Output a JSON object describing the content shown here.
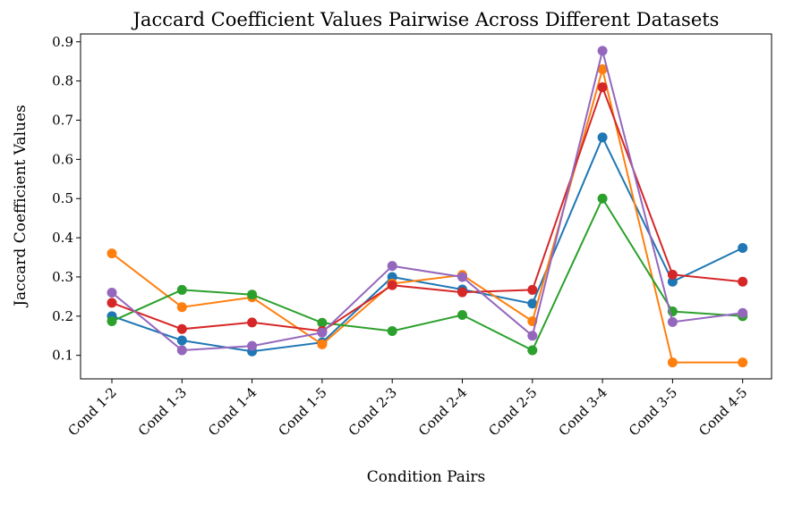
{
  "chart_data": {
    "type": "line",
    "title": "Jaccard Coefficient Values Pairwise Across Different Datasets",
    "xlabel": "Condition Pairs",
    "ylabel": "Jaccard Coefficient Values",
    "categories": [
      "Cond 1-2",
      "Cond 1-3",
      "Cond 1-4",
      "Cond 1-5",
      "Cond 2-3",
      "Cond 2-4",
      "Cond 2-5",
      "Cond 3-4",
      "Cond 3-5",
      "Cond 4-5"
    ],
    "ylim": [
      0.04,
      0.92
    ],
    "yticks": [
      0.1,
      0.2,
      0.3,
      0.4,
      0.5,
      0.6,
      0.7,
      0.8,
      0.9
    ],
    "ytick_labels": [
      "0.1",
      "0.2",
      "0.3",
      "0.4",
      "0.5",
      "0.6",
      "0.7",
      "0.8",
      "0.9"
    ],
    "grid": false,
    "legend": "none",
    "series": [
      {
        "color": "#1f77b4",
        "values": [
          0.2,
          0.138,
          0.11,
          0.133,
          0.3,
          0.268,
          0.232,
          0.656,
          0.288,
          0.374
        ]
      },
      {
        "color": "#ff7f0e",
        "values": [
          0.36,
          0.223,
          0.248,
          0.128,
          0.283,
          0.305,
          0.187,
          0.83,
          0.082,
          0.082
        ]
      },
      {
        "color": "#2ca02c",
        "values": [
          0.187,
          0.267,
          0.255,
          0.183,
          0.162,
          0.203,
          0.113,
          0.5,
          0.212,
          0.2
        ]
      },
      {
        "color": "#d62728",
        "values": [
          0.234,
          0.167,
          0.184,
          0.162,
          0.279,
          0.261,
          0.267,
          0.784,
          0.306,
          0.288
        ]
      },
      {
        "color": "#9467bd",
        "values": [
          0.26,
          0.113,
          0.124,
          0.158,
          0.328,
          0.3,
          0.15,
          0.877,
          0.185,
          0.208
        ]
      }
    ]
  }
}
